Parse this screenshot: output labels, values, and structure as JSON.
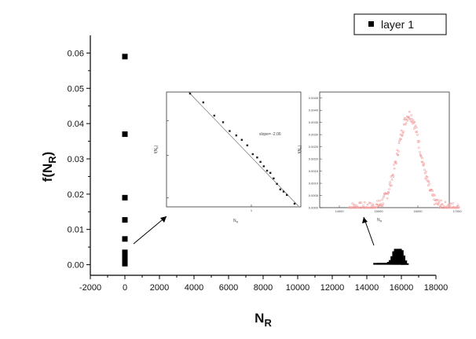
{
  "chart_data": [
    {
      "type": "scatter",
      "title": "",
      "xlabel": "N",
      "xlabel_sub": "R",
      "ylabel": "f(N",
      "ylabel_sub": "R",
      "ylabel_close": ")",
      "xlim": [
        -2000,
        18000
      ],
      "ylim": [
        -0.003,
        0.065
      ],
      "xticks": [
        -2000,
        0,
        2000,
        4000,
        6000,
        8000,
        10000,
        12000,
        14000,
        16000,
        18000
      ],
      "xtick_labels": [
        "-2000",
        "0",
        "2000",
        "4000",
        "6000",
        "8000",
        "10000",
        "12000",
        "14000",
        "16000",
        "18000"
      ],
      "yticks": [
        0.0,
        0.01,
        0.02,
        0.03,
        0.04,
        0.05,
        0.06
      ],
      "ytick_labels": [
        "0.00",
        "0.01",
        "0.02",
        "0.03",
        "0.04",
        "0.05",
        "0.06"
      ],
      "legend": {
        "position": "top-right",
        "entries": [
          "layer 1"
        ]
      },
      "series": [
        {
          "name": "layer 1",
          "points": [
            [
              0,
              0.059
            ],
            [
              0,
              0.037
            ],
            [
              0,
              0.019
            ],
            [
              0,
              0.0127
            ],
            [
              0,
              0.0073
            ],
            [
              0,
              0.0035
            ],
            [
              0,
              0.0025
            ],
            [
              0,
              0.0018
            ],
            [
              0,
              0.0012
            ],
            [
              0,
              0.0007
            ],
            [
              0,
              0.0003
            ]
          ]
        }
      ],
      "peak_distribution": {
        "x": [
          14600,
          14800,
          15000,
          15200,
          15400,
          15500,
          15600,
          15700,
          15800,
          15900,
          16000,
          16100,
          16200
        ],
        "y": [
          0.0005,
          0.0005,
          0.0005,
          0.0005,
          0.0008,
          0.0013,
          0.0024,
          0.0038,
          0.0045,
          0.0041,
          0.0026,
          0.0012,
          0.0004
        ]
      }
    },
    {
      "type": "scatter",
      "xlabel": "N",
      "xlabel_sub": "R",
      "ylabel": "f(N",
      "ylabel_sub": "R",
      "ylabel_close": ")",
      "scale": "log-log",
      "ytick_labels": [
        "",
        "",
        ""
      ],
      "xtick_labels": [
        "1"
      ],
      "annotation": "slope= -2.06",
      "series": [
        {
          "points": [
            [
              0.0,
              0.0
            ],
            [
              0.12,
              -0.08
            ],
            [
              0.22,
              -0.2
            ],
            [
              0.3,
              -0.26
            ],
            [
              0.36,
              -0.34
            ],
            [
              0.42,
              -0.38
            ],
            [
              0.47,
              -0.42
            ],
            [
              0.52,
              -0.47
            ],
            [
              0.57,
              -0.55
            ],
            [
              0.61,
              -0.58
            ],
            [
              0.64,
              -0.62
            ],
            [
              0.67,
              -0.66
            ],
            [
              0.7,
              -0.7
            ],
            [
              0.73,
              -0.72
            ],
            [
              0.76,
              -0.77
            ],
            [
              0.79,
              -0.82
            ],
            [
              0.82,
              -0.87
            ],
            [
              0.85,
              -0.89
            ],
            [
              0.88,
              -0.92
            ],
            [
              0.95,
              -1.0
            ]
          ]
        }
      ]
    },
    {
      "type": "scatter",
      "xlabel": "N",
      "xlabel_sub": "R",
      "ylabel": "f(N",
      "ylabel_sub": "R",
      "ylabel_close": ")",
      "xtick_labels": [
        "14000",
        "15000",
        "16000",
        "17000"
      ],
      "ytick_labels": [
        "0.0000",
        "0.0005",
        "0.0010",
        "0.0015",
        "0.0020",
        "0.0025",
        "0.0030",
        "0.0035",
        "0.0040",
        "0.0045"
      ],
      "series": [
        {
          "distribution": "gaussian",
          "mean": 15780,
          "sigma": 290,
          "peak": 0.0038
        }
      ]
    }
  ],
  "colors": {
    "main_marker": "#000000",
    "inset_marker": "#222222",
    "distribution_marker": "#f2a3a3"
  }
}
